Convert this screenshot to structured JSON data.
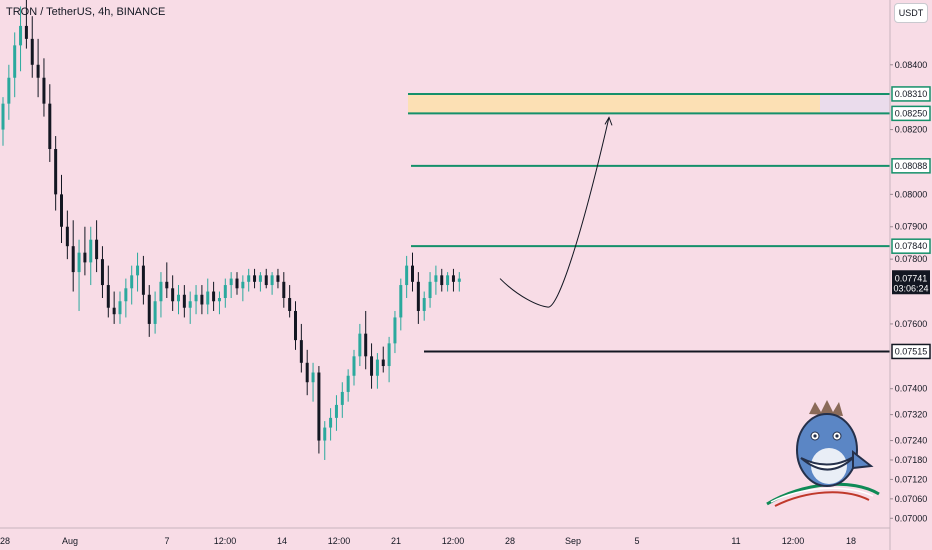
{
  "header": {
    "symbol_line": "TRON / TetherUS, 4h, BINANCE",
    "currency": "USDT"
  },
  "colors": {
    "background": "#f8dce6",
    "up": "#2aa99d",
    "down": "#131722",
    "level": "#15906a",
    "zone_fill": "#fce0b4",
    "last_price": "#131722"
  },
  "chart_data": {
    "type": "candlestick",
    "ylim": [
      0.0697,
      0.086
    ],
    "price_ticks": [
      "0.08400",
      "0.08200",
      "0.08000",
      "0.07900",
      "0.07800",
      "0.07600",
      "0.07400",
      "0.07320",
      "0.07240",
      "0.07180",
      "0.07120",
      "0.07060",
      "0.07000"
    ],
    "time_labels": [
      "28",
      "Aug",
      "7",
      "12:00",
      "14",
      "12:00",
      "21",
      "12:00",
      "28",
      "Sep",
      "5",
      "11",
      "12:00",
      "18"
    ],
    "levels": [
      {
        "price": 0.0831,
        "label": "0.08310",
        "style": "green"
      },
      {
        "price": 0.0825,
        "label": "0.08250",
        "style": "green"
      },
      {
        "price": 0.08088,
        "label": "0.08088",
        "style": "green"
      },
      {
        "price": 0.0784,
        "label": "0.07840",
        "style": "green"
      },
      {
        "price": 0.07515,
        "label": "0.07515",
        "style": "black"
      }
    ],
    "zone": [
      0.0825,
      0.0831
    ],
    "last_price": {
      "value": "0.07741",
      "countdown": "03:06:24"
    },
    "projection": {
      "start": 0.0774,
      "low": 0.07655,
      "end": 0.0825
    },
    "candles": [
      [
        0.082,
        0.083,
        0.0815,
        0.0828
      ],
      [
        0.0828,
        0.084,
        0.0823,
        0.0836
      ],
      [
        0.0836,
        0.085,
        0.083,
        0.0846
      ],
      [
        0.0846,
        0.0858,
        0.0838,
        0.0852
      ],
      [
        0.0852,
        0.086,
        0.0845,
        0.0848
      ],
      [
        0.0848,
        0.0855,
        0.0836,
        0.084
      ],
      [
        0.084,
        0.0848,
        0.083,
        0.0836
      ],
      [
        0.0836,
        0.0842,
        0.0824,
        0.0828
      ],
      [
        0.0828,
        0.0834,
        0.081,
        0.0814
      ],
      [
        0.0814,
        0.0818,
        0.0795,
        0.08
      ],
      [
        0.08,
        0.0806,
        0.0785,
        0.079
      ],
      [
        0.079,
        0.0795,
        0.078,
        0.0784
      ],
      [
        0.0784,
        0.0792,
        0.077,
        0.0776
      ],
      [
        0.0776,
        0.0786,
        0.0764,
        0.0782
      ],
      [
        0.0782,
        0.079,
        0.0775,
        0.0779
      ],
      [
        0.0779,
        0.079,
        0.0772,
        0.0786
      ],
      [
        0.0786,
        0.0792,
        0.0776,
        0.078
      ],
      [
        0.078,
        0.0784,
        0.0768,
        0.0772
      ],
      [
        0.0772,
        0.0778,
        0.0762,
        0.0765
      ],
      [
        0.0765,
        0.077,
        0.076,
        0.0763
      ],
      [
        0.0763,
        0.077,
        0.076,
        0.0767
      ],
      [
        0.0767,
        0.0774,
        0.0762,
        0.0771
      ],
      [
        0.0771,
        0.0778,
        0.0766,
        0.0775
      ],
      [
        0.0775,
        0.0782,
        0.077,
        0.0778
      ],
      [
        0.0778,
        0.0781,
        0.0766,
        0.0769
      ],
      [
        0.0769,
        0.0772,
        0.0756,
        0.076
      ],
      [
        0.076,
        0.077,
        0.0757,
        0.0767
      ],
      [
        0.0767,
        0.0776,
        0.0762,
        0.0773
      ],
      [
        0.0773,
        0.0779,
        0.0768,
        0.0771
      ],
      [
        0.0771,
        0.0775,
        0.0764,
        0.0767
      ],
      [
        0.0767,
        0.0772,
        0.0763,
        0.0769
      ],
      [
        0.0769,
        0.0772,
        0.0762,
        0.0765
      ],
      [
        0.0765,
        0.077,
        0.076,
        0.0767
      ],
      [
        0.0767,
        0.0772,
        0.0763,
        0.0769
      ],
      [
        0.0769,
        0.0772,
        0.0763,
        0.0766
      ],
      [
        0.0766,
        0.0774,
        0.0763,
        0.077
      ],
      [
        0.077,
        0.0773,
        0.0764,
        0.0767
      ],
      [
        0.0767,
        0.077,
        0.0763,
        0.0768
      ],
      [
        0.0768,
        0.0774,
        0.0765,
        0.0772
      ],
      [
        0.0772,
        0.0776,
        0.0768,
        0.0774
      ],
      [
        0.0774,
        0.0776,
        0.0769,
        0.0771
      ],
      [
        0.0771,
        0.0775,
        0.0767,
        0.0773
      ],
      [
        0.0773,
        0.0777,
        0.077,
        0.0775
      ],
      [
        0.0775,
        0.0777,
        0.0771,
        0.0773
      ],
      [
        0.0773,
        0.0776,
        0.077,
        0.0775
      ],
      [
        0.0775,
        0.0777,
        0.0771,
        0.0772
      ],
      [
        0.0772,
        0.0776,
        0.0769,
        0.0775
      ],
      [
        0.0775,
        0.0777,
        0.0771,
        0.0773
      ],
      [
        0.0773,
        0.0776,
        0.0765,
        0.0768
      ],
      [
        0.0768,
        0.0772,
        0.0762,
        0.0764
      ],
      [
        0.0764,
        0.0767,
        0.0752,
        0.0755
      ],
      [
        0.0755,
        0.076,
        0.0745,
        0.0748
      ],
      [
        0.0748,
        0.0752,
        0.0738,
        0.0742
      ],
      [
        0.0742,
        0.0748,
        0.0736,
        0.0745
      ],
      [
        0.0745,
        0.0747,
        0.072,
        0.0724
      ],
      [
        0.0724,
        0.073,
        0.0718,
        0.0728
      ],
      [
        0.0728,
        0.0734,
        0.0724,
        0.0731
      ],
      [
        0.0731,
        0.0738,
        0.0727,
        0.0735
      ],
      [
        0.0735,
        0.0742,
        0.0731,
        0.0739
      ],
      [
        0.0739,
        0.0746,
        0.0736,
        0.0744
      ],
      [
        0.0744,
        0.0752,
        0.0741,
        0.075
      ],
      [
        0.075,
        0.076,
        0.0747,
        0.0757
      ],
      [
        0.0757,
        0.0764,
        0.0746,
        0.075
      ],
      [
        0.075,
        0.0754,
        0.074,
        0.0744
      ],
      [
        0.0744,
        0.0751,
        0.074,
        0.0749
      ],
      [
        0.0749,
        0.0753,
        0.0745,
        0.0747
      ],
      [
        0.0747,
        0.0756,
        0.0742,
        0.0754
      ],
      [
        0.0754,
        0.0764,
        0.0751,
        0.0762
      ],
      [
        0.0762,
        0.0774,
        0.0758,
        0.0772
      ],
      [
        0.0772,
        0.0781,
        0.0768,
        0.0778
      ],
      [
        0.0778,
        0.0782,
        0.077,
        0.0773
      ],
      [
        0.0773,
        0.0776,
        0.076,
        0.0764
      ],
      [
        0.0764,
        0.077,
        0.0761,
        0.0768
      ],
      [
        0.0768,
        0.0776,
        0.0765,
        0.0773
      ],
      [
        0.0773,
        0.0778,
        0.0769,
        0.0775
      ],
      [
        0.0775,
        0.0777,
        0.077,
        0.0772
      ],
      [
        0.0772,
        0.0776,
        0.077,
        0.0775
      ],
      [
        0.0775,
        0.0777,
        0.077,
        0.0773
      ],
      [
        0.0773,
        0.0776,
        0.077,
        0.0774
      ]
    ]
  }
}
